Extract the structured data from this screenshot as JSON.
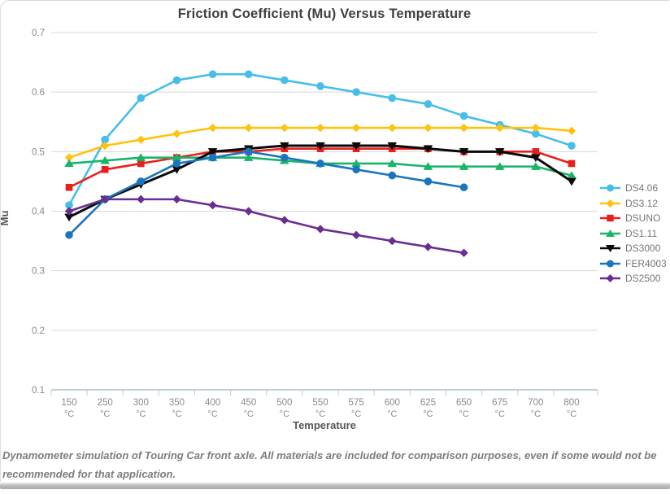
{
  "title": "Friction Coefficient (Mu) Versus Temperature",
  "caption": "Dynamometer simulation of Touring Car front axle. All materials are included for comparison purposes, even if some would not be recommended for that application.",
  "chart_data": {
    "type": "line",
    "xlabel": "Temperature",
    "ylabel": "Mu",
    "x_unit": "°C",
    "categories": [
      "150",
      "250",
      "300",
      "350",
      "400",
      "450",
      "500",
      "550",
      "575",
      "600",
      "625",
      "650",
      "675",
      "700",
      "800"
    ],
    "ylim": [
      0.1,
      0.7
    ],
    "yticks": [
      0.1,
      0.2,
      0.3,
      0.4,
      0.5,
      0.6,
      0.7
    ],
    "grid": "horizontal",
    "legend_position": "right",
    "colors": {
      "grid": "#d8d8d8",
      "axis_line": "#a9c3d0",
      "tick": "#c9c9c9",
      "tick_label": "#8a8a8a",
      "legend_text": "#757575"
    },
    "series": [
      {
        "name": "DS4.06",
        "color": "#47bdea",
        "marker": "circle",
        "values": [
          0.41,
          0.52,
          0.59,
          0.62,
          0.63,
          0.63,
          0.62,
          0.61,
          0.6,
          0.59,
          0.58,
          0.56,
          0.545,
          0.53,
          0.51
        ]
      },
      {
        "name": "DS3.12",
        "color": "#ffc20e",
        "marker": "diamond",
        "values": [
          0.49,
          0.51,
          0.52,
          0.53,
          0.54,
          0.54,
          0.54,
          0.54,
          0.54,
          0.54,
          0.54,
          0.54,
          0.54,
          0.54,
          0.535
        ]
      },
      {
        "name": "DSUNO",
        "color": "#e8201d",
        "marker": "square",
        "values": [
          0.44,
          0.47,
          0.48,
          0.49,
          0.5,
          0.5,
          0.505,
          0.505,
          0.505,
          0.505,
          0.505,
          0.5,
          0.5,
          0.5,
          0.48
        ]
      },
      {
        "name": "DS1.11",
        "color": "#17b568",
        "marker": "triangle-up",
        "values": [
          0.48,
          0.485,
          0.49,
          0.49,
          0.49,
          0.49,
          0.485,
          0.48,
          0.48,
          0.48,
          0.475,
          0.475,
          0.475,
          0.475,
          0.46
        ]
      },
      {
        "name": "DS3000",
        "color": "#0a0a0a",
        "marker": "triangle-down",
        "values": [
          0.39,
          0.42,
          0.445,
          0.47,
          0.5,
          0.505,
          0.51,
          0.51,
          0.51,
          0.51,
          0.505,
          0.5,
          0.5,
          0.49,
          0.45
        ]
      },
      {
        "name": "FER4003",
        "color": "#1b75bc",
        "marker": "circle",
        "values": [
          0.36,
          0.42,
          0.45,
          0.48,
          0.49,
          0.5,
          0.49,
          0.48,
          0.47,
          0.46,
          0.45,
          0.44,
          null,
          null,
          null
        ]
      },
      {
        "name": "DS2500",
        "color": "#692e91",
        "marker": "diamond",
        "values": [
          0.4,
          0.42,
          0.42,
          0.42,
          0.41,
          0.4,
          0.385,
          0.37,
          0.36,
          0.35,
          0.34,
          0.33,
          null,
          null,
          null
        ]
      }
    ]
  }
}
